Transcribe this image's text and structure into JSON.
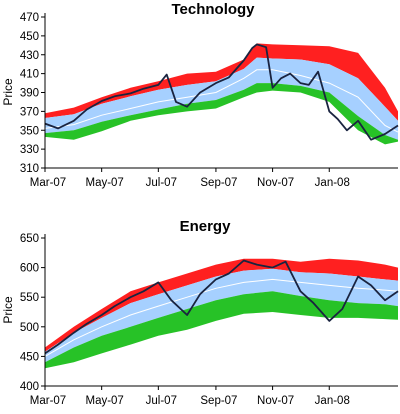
{
  "colors": {
    "upper_band": "#ff2020",
    "middle_band": "#a6d0ff",
    "lower_band": "#27c227",
    "price_line": "#1a2440",
    "mean_line": "#ffffff",
    "axis": "#000000"
  },
  "chart_data": [
    {
      "type": "area",
      "title": "Technology",
      "xlabel": "",
      "ylabel": "Price",
      "ylim": [
        310,
        470
      ],
      "y_ticks": [
        310,
        330,
        350,
        370,
        390,
        410,
        430,
        450,
        470
      ],
      "x_domain": [
        "2007-03-01",
        "2008-03-15"
      ],
      "x_tick_dates": [
        "2007-03-01",
        "2007-05-01",
        "2007-07-01",
        "2007-09-01",
        "2007-11-01",
        "2008-01-01"
      ],
      "x_tick_labels": [
        "Mar-07",
        "May-07",
        "Jul-07",
        "Sep-07",
        "Nov-07",
        "Jan-08"
      ],
      "grid": false,
      "legend": "none",
      "band_dates": [
        "2007-03-01",
        "2007-04-01",
        "2007-05-01",
        "2007-06-01",
        "2007-07-01",
        "2007-08-01",
        "2007-09-01",
        "2007-10-01",
        "2007-10-15",
        "2007-11-01",
        "2007-12-01",
        "2008-01-01",
        "2008-02-01",
        "2008-03-01",
        "2008-03-15"
      ],
      "bands": {
        "top": [
          368,
          374,
          385,
          395,
          402,
          410,
          412,
          425,
          442,
          441,
          440,
          439,
          432,
          395,
          370
        ],
        "upper": [
          363,
          367,
          378,
          386,
          393,
          398,
          402,
          415,
          427,
          426,
          425,
          420,
          405,
          375,
          360
        ],
        "mean": [
          352,
          356,
          366,
          373,
          380,
          385,
          390,
          405,
          414,
          414,
          408,
          400,
          385,
          355,
          348
        ],
        "lower": [
          347,
          350,
          359,
          366,
          372,
          378,
          382,
          393,
          400,
          400,
          397,
          390,
          365,
          345,
          340
        ],
        "bottom": [
          343,
          340,
          349,
          360,
          366,
          370,
          373,
          385,
          390,
          392,
          390,
          380,
          350,
          335,
          338
        ]
      },
      "price_dates": [
        "2007-03-01",
        "2007-03-15",
        "2007-04-01",
        "2007-04-15",
        "2007-05-01",
        "2007-05-15",
        "2007-06-01",
        "2007-06-15",
        "2007-07-01",
        "2007-07-10",
        "2007-07-20",
        "2007-08-01",
        "2007-08-15",
        "2007-09-01",
        "2007-09-15",
        "2007-10-01",
        "2007-10-10",
        "2007-10-15",
        "2007-10-25",
        "2007-11-01",
        "2007-11-10",
        "2007-11-20",
        "2007-12-01",
        "2007-12-10",
        "2007-12-20",
        "2008-01-01",
        "2008-01-10",
        "2008-01-20",
        "2008-02-01",
        "2008-02-15",
        "2008-03-01",
        "2008-03-15"
      ],
      "price": [
        357,
        352,
        360,
        372,
        381,
        386,
        389,
        394,
        398,
        409,
        380,
        375,
        390,
        400,
        406,
        424,
        437,
        441,
        438,
        395,
        405,
        410,
        400,
        398,
        412,
        370,
        362,
        350,
        360,
        340,
        346,
        355
      ]
    },
    {
      "type": "area",
      "title": "Energy",
      "xlabel": "",
      "ylabel": "Price",
      "ylim": [
        400,
        650
      ],
      "y_ticks": [
        400,
        450,
        500,
        550,
        600,
        650
      ],
      "x_domain": [
        "2007-03-01",
        "2008-03-15"
      ],
      "x_tick_dates": [
        "2007-03-01",
        "2007-05-01",
        "2007-07-01",
        "2007-09-01",
        "2007-11-01",
        "2008-01-01"
      ],
      "x_tick_labels": [
        "Mar-07",
        "May-07",
        "Jul-07",
        "Sep-07",
        "Nov-07",
        "Jan-08"
      ],
      "grid": false,
      "legend": "none",
      "band_dates": [
        "2007-03-01",
        "2007-04-01",
        "2007-05-01",
        "2007-06-01",
        "2007-07-01",
        "2007-08-01",
        "2007-09-01",
        "2007-10-01",
        "2007-11-01",
        "2007-12-01",
        "2008-01-01",
        "2008-02-01",
        "2008-03-01",
        "2008-03-15"
      ],
      "bands": {
        "top": [
          465,
          500,
          530,
          560,
          575,
          590,
          605,
          615,
          615,
          610,
          615,
          612,
          605,
          600
        ],
        "upper": [
          458,
          490,
          515,
          540,
          555,
          570,
          585,
          595,
          598,
          592,
          590,
          585,
          580,
          578
        ],
        "mean": [
          450,
          478,
          500,
          520,
          535,
          550,
          565,
          575,
          580,
          575,
          570,
          565,
          562,
          560
        ],
        "lower": [
          440,
          465,
          485,
          500,
          515,
          530,
          545,
          555,
          560,
          552,
          545,
          540,
          538,
          535
        ],
        "bottom": [
          430,
          440,
          455,
          470,
          485,
          495,
          510,
          522,
          525,
          520,
          515,
          515,
          513,
          512
        ]
      },
      "price_dates": [
        "2007-03-01",
        "2007-03-15",
        "2007-04-01",
        "2007-04-15",
        "2007-05-01",
        "2007-05-15",
        "2007-06-01",
        "2007-06-15",
        "2007-07-01",
        "2007-07-15",
        "2007-08-01",
        "2007-08-15",
        "2007-09-01",
        "2007-09-15",
        "2007-10-01",
        "2007-10-15",
        "2007-11-01",
        "2007-11-15",
        "2007-12-01",
        "2007-12-15",
        "2008-01-01",
        "2008-01-15",
        "2008-02-01",
        "2008-02-15",
        "2008-03-01",
        "2008-03-15"
      ],
      "price": [
        455,
        470,
        490,
        505,
        520,
        535,
        550,
        560,
        575,
        545,
        520,
        555,
        580,
        590,
        612,
        605,
        600,
        610,
        560,
        540,
        510,
        530,
        585,
        570,
        545,
        560
      ]
    }
  ]
}
